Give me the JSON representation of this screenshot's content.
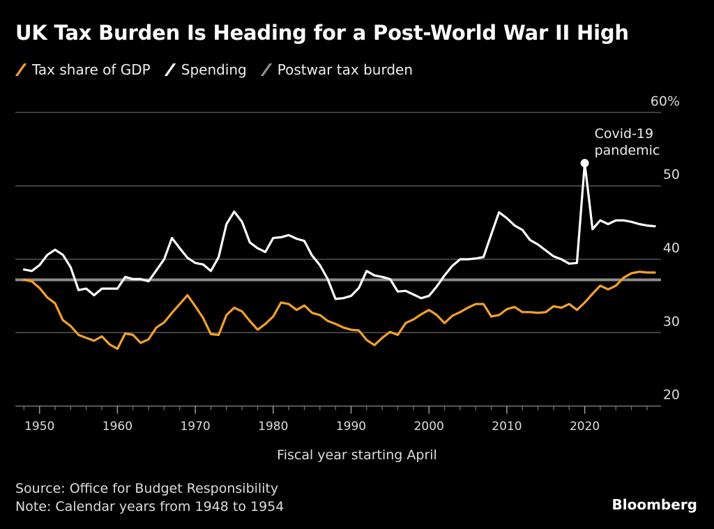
{
  "title": "UK Tax Burden Is Heading for a Post-World War II High",
  "legend": [
    {
      "label": "Tax share of GDP",
      "color": "#f5a02c"
    },
    {
      "label": "Spending",
      "color": "#ffffff"
    },
    {
      "label": "Postwar tax burden",
      "color": "#8c8c8c"
    }
  ],
  "footer": {
    "source": "Source: Office for Budget Responsibility",
    "note": "Note: Calendar years from 1948 to 1954",
    "brand": "Bloomberg"
  },
  "chart_data": {
    "type": "line",
    "title": "UK Tax Burden Is Heading for a Post-World War II High",
    "xlabel": "Fiscal year starting April",
    "ylabel": "",
    "xlim": [
      1948,
      2029
    ],
    "ylim": [
      20,
      60
    ],
    "grid": true,
    "legend_placement": "top-left",
    "y_ticks": [
      20,
      30,
      40,
      50,
      60
    ],
    "y_tick_labels": [
      "20",
      "30",
      "40",
      "50",
      "60%"
    ],
    "x_ticks": [
      1950,
      1960,
      1970,
      1980,
      1990,
      2000,
      2010,
      2020
    ],
    "x_tick_labels": [
      "1950",
      "1960",
      "1970",
      "1980",
      "1990",
      "2000",
      "2010",
      "2020"
    ],
    "x": [
      1948,
      1949,
      1950,
      1951,
      1952,
      1953,
      1954,
      1955,
      1956,
      1957,
      1958,
      1959,
      1960,
      1961,
      1962,
      1963,
      1964,
      1965,
      1966,
      1967,
      1968,
      1969,
      1970,
      1971,
      1972,
      1973,
      1974,
      1975,
      1976,
      1977,
      1978,
      1979,
      1980,
      1981,
      1982,
      1983,
      1984,
      1985,
      1986,
      1987,
      1988,
      1989,
      1990,
      1991,
      1992,
      1993,
      1994,
      1995,
      1996,
      1997,
      1998,
      1999,
      2000,
      2001,
      2002,
      2003,
      2004,
      2005,
      2006,
      2007,
      2008,
      2009,
      2010,
      2011,
      2012,
      2013,
      2014,
      2015,
      2016,
      2017,
      2018,
      2019,
      2020,
      2021,
      2022,
      2023,
      2024,
      2025,
      2026,
      2027,
      2028,
      2029
    ],
    "series": [
      {
        "name": "Tax share of GDP",
        "color": "#f5a02c",
        "values": [
          37.2,
          37.0,
          36.1,
          34.8,
          34.0,
          31.7,
          30.9,
          29.7,
          29.3,
          28.9,
          29.5,
          28.4,
          27.8,
          29.9,
          29.7,
          28.6,
          29.1,
          30.7,
          31.4,
          32.7,
          33.9,
          35.1,
          33.6,
          32.0,
          29.8,
          29.7,
          32.4,
          33.4,
          32.9,
          31.6,
          30.4,
          31.2,
          32.2,
          34.1,
          33.9,
          33.1,
          33.7,
          32.7,
          32.4,
          31.6,
          31.2,
          30.7,
          30.4,
          30.3,
          29.0,
          28.3,
          29.3,
          30.1,
          29.7,
          31.3,
          31.8,
          32.5,
          33.1,
          32.4,
          31.3,
          32.3,
          32.8,
          33.4,
          33.9,
          33.9,
          32.2,
          32.4,
          33.2,
          33.5,
          32.8,
          32.8,
          32.7,
          32.8,
          33.6,
          33.4,
          33.9,
          33.1,
          34.1,
          35.3,
          36.4,
          35.9,
          36.4,
          37.5,
          38.1,
          38.3,
          38.2,
          38.2
        ]
      },
      {
        "name": "Spending",
        "color": "#ffffff",
        "values": [
          38.6,
          38.4,
          39.2,
          40.6,
          41.3,
          40.6,
          38.9,
          35.8,
          36.0,
          35.1,
          36.0,
          36.0,
          36.0,
          37.6,
          37.3,
          37.3,
          37.0,
          38.5,
          40.0,
          42.9,
          41.5,
          40.2,
          39.5,
          39.3,
          38.4,
          40.3,
          44.8,
          46.5,
          45.1,
          42.3,
          41.5,
          41.0,
          42.9,
          43.0,
          43.3,
          42.8,
          42.5,
          40.5,
          39.2,
          37.3,
          34.6,
          34.7,
          35.0,
          36.1,
          38.4,
          37.8,
          37.6,
          37.3,
          35.6,
          35.7,
          35.2,
          34.7,
          35.0,
          36.3,
          37.8,
          39.1,
          40.0,
          40.0,
          40.1,
          40.3,
          43.4,
          46.4,
          45.6,
          44.6,
          44.0,
          42.6,
          42.0,
          41.2,
          40.4,
          40.0,
          39.4,
          39.5,
          53.1,
          44.1,
          45.3,
          44.8,
          45.3,
          45.3,
          45.1,
          44.8,
          44.6,
          44.5
        ]
      }
    ],
    "reference_lines": [
      {
        "name": "Postwar tax burden",
        "value": 37.2,
        "color": "#8c8c8c"
      }
    ],
    "annotations": [
      {
        "text": [
          "Covid-19",
          "pandemic"
        ],
        "x": 2020,
        "y": 53.1,
        "series": "Spending"
      }
    ]
  }
}
